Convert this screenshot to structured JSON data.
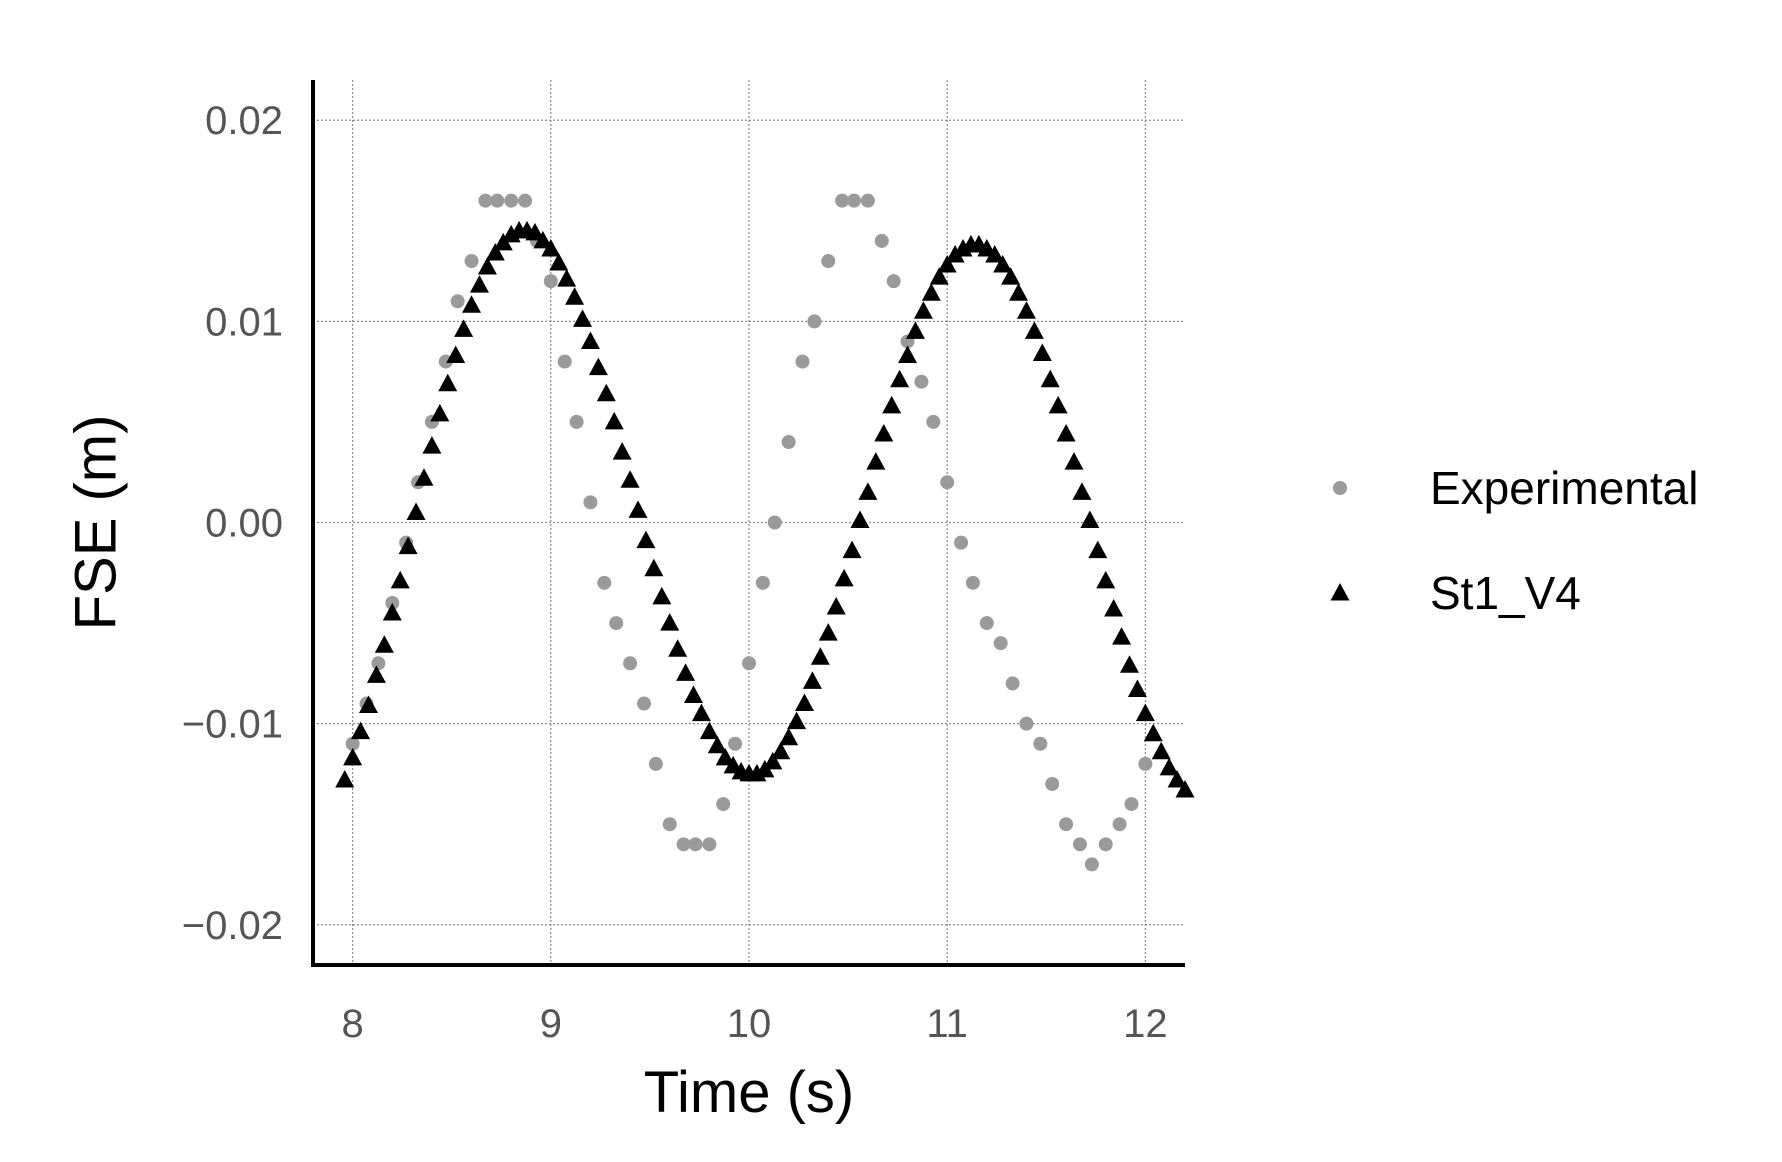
{
  "chart_data": {
    "type": "scatter",
    "xlabel": "Time (s)",
    "ylabel": "FSE (m)",
    "xlim": [
      7.8,
      12.2
    ],
    "ylim": [
      -0.022,
      0.022
    ],
    "x_ticks": [
      8,
      9,
      10,
      11,
      12
    ],
    "x_tick_labels": [
      "8",
      "9",
      "10",
      "11",
      "12"
    ],
    "y_ticks": [
      -0.02,
      -0.01,
      0.0,
      0.01,
      0.02
    ],
    "y_tick_labels": [
      "−0.02",
      "−0.01",
      "0.00",
      "0.01",
      "0.02"
    ],
    "grid": true,
    "legend_position": "right",
    "series": [
      {
        "name": "Experimental",
        "marker": "circle",
        "color": "#9a9a9a",
        "x": [
          8.0,
          8.07,
          8.13,
          8.2,
          8.27,
          8.33,
          8.4,
          8.47,
          8.53,
          8.6,
          8.67,
          8.73,
          8.8,
          8.87,
          8.93,
          9.0,
          9.07,
          9.13,
          9.2,
          9.27,
          9.33,
          9.4,
          9.47,
          9.53,
          9.6,
          9.67,
          9.73,
          9.8,
          9.87,
          9.93,
          10.0,
          10.07,
          10.13,
          10.2,
          10.27,
          10.33,
          10.4,
          10.47,
          10.53,
          10.6,
          10.67,
          10.73,
          10.8,
          10.87,
          10.93,
          11.0,
          11.07,
          11.13,
          11.2,
          11.27,
          11.33,
          11.4,
          11.47,
          11.53,
          11.6,
          11.67,
          11.73,
          11.8,
          11.87,
          11.93,
          12.0
        ],
        "y": [
          -0.011,
          -0.009,
          -0.007,
          -0.004,
          -0.001,
          0.002,
          0.005,
          0.008,
          0.011,
          0.013,
          0.016,
          0.016,
          0.016,
          0.016,
          0.014,
          0.012,
          0.008,
          0.005,
          0.001,
          -0.003,
          -0.005,
          -0.007,
          -0.009,
          -0.012,
          -0.015,
          -0.016,
          -0.016,
          -0.016,
          -0.014,
          -0.011,
          -0.007,
          -0.003,
          0.0,
          0.004,
          0.008,
          0.01,
          0.013,
          0.016,
          0.016,
          0.016,
          0.014,
          0.012,
          0.009,
          0.007,
          0.005,
          0.002,
          -0.001,
          -0.003,
          -0.005,
          -0.006,
          -0.008,
          -0.01,
          -0.011,
          -0.013,
          -0.015,
          -0.016,
          -0.017,
          -0.016,
          -0.015,
          -0.014,
          -0.012
        ]
      },
      {
        "name": "St1_V4",
        "marker": "triangle",
        "color": "#000000",
        "x": [
          7.96,
          8.0,
          8.04,
          8.08,
          8.12,
          8.16,
          8.2,
          8.24,
          8.28,
          8.32,
          8.36,
          8.4,
          8.44,
          8.48,
          8.52,
          8.56,
          8.6,
          8.64,
          8.68,
          8.72,
          8.76,
          8.8,
          8.84,
          8.88,
          8.92,
          8.96,
          9.0,
          9.04,
          9.08,
          9.12,
          9.16,
          9.2,
          9.24,
          9.28,
          9.32,
          9.36,
          9.4,
          9.44,
          9.48,
          9.52,
          9.56,
          9.6,
          9.64,
          9.68,
          9.72,
          9.76,
          9.8,
          9.84,
          9.88,
          9.92,
          9.96,
          10.0,
          10.04,
          10.08,
          10.12,
          10.16,
          10.2,
          10.24,
          10.28,
          10.32,
          10.36,
          10.4,
          10.44,
          10.48,
          10.52,
          10.56,
          10.6,
          10.64,
          10.68,
          10.72,
          10.76,
          10.8,
          10.84,
          10.88,
          10.92,
          10.96,
          11.0,
          11.04,
          11.08,
          11.12,
          11.16,
          11.2,
          11.24,
          11.28,
          11.32,
          11.36,
          11.4,
          11.44,
          11.48,
          11.52,
          11.56,
          11.6,
          11.64,
          11.68,
          11.72,
          11.76,
          11.8,
          11.84,
          11.88,
          11.92,
          11.96,
          12.0,
          12.04,
          12.08,
          12.12,
          12.16,
          12.2
        ],
        "y": [
          -0.0128,
          -0.0117,
          -0.0104,
          -0.0091,
          -0.0076,
          -0.0061,
          -0.0045,
          -0.0029,
          -0.0012,
          0.0005,
          0.0022,
          0.0038,
          0.0054,
          0.0069,
          0.0083,
          0.0096,
          0.0108,
          0.0118,
          0.0127,
          0.0134,
          0.0139,
          0.0143,
          0.0145,
          0.0145,
          0.0144,
          0.014,
          0.0136,
          0.0129,
          0.0121,
          0.0112,
          0.0101,
          0.009,
          0.0077,
          0.0064,
          0.005,
          0.0035,
          0.0021,
          0.0006,
          -0.0009,
          -0.0023,
          -0.0037,
          -0.005,
          -0.0063,
          -0.0075,
          -0.0086,
          -0.0095,
          -0.0104,
          -0.0111,
          -0.0117,
          -0.0121,
          -0.0124,
          -0.0125,
          -0.0125,
          -0.0123,
          -0.0119,
          -0.0114,
          -0.0107,
          -0.0099,
          -0.009,
          -0.0079,
          -0.0067,
          -0.0055,
          -0.0042,
          -0.0028,
          -0.0014,
          0.0001,
          0.0015,
          0.003,
          0.0044,
          0.0058,
          0.0071,
          0.0083,
          0.0095,
          0.0105,
          0.0114,
          0.0122,
          0.0128,
          0.0133,
          0.0136,
          0.0138,
          0.0138,
          0.0136,
          0.0133,
          0.0128,
          0.0122,
          0.0114,
          0.0105,
          0.0095,
          0.0084,
          0.0071,
          0.0058,
          0.0044,
          0.003,
          0.0015,
          0.0001,
          -0.0014,
          -0.0029,
          -0.0043,
          -0.0057,
          -0.0071,
          -0.0083,
          -0.0095,
          -0.0105,
          -0.0114,
          -0.0122,
          -0.0128,
          -0.0133
        ]
      }
    ]
  }
}
